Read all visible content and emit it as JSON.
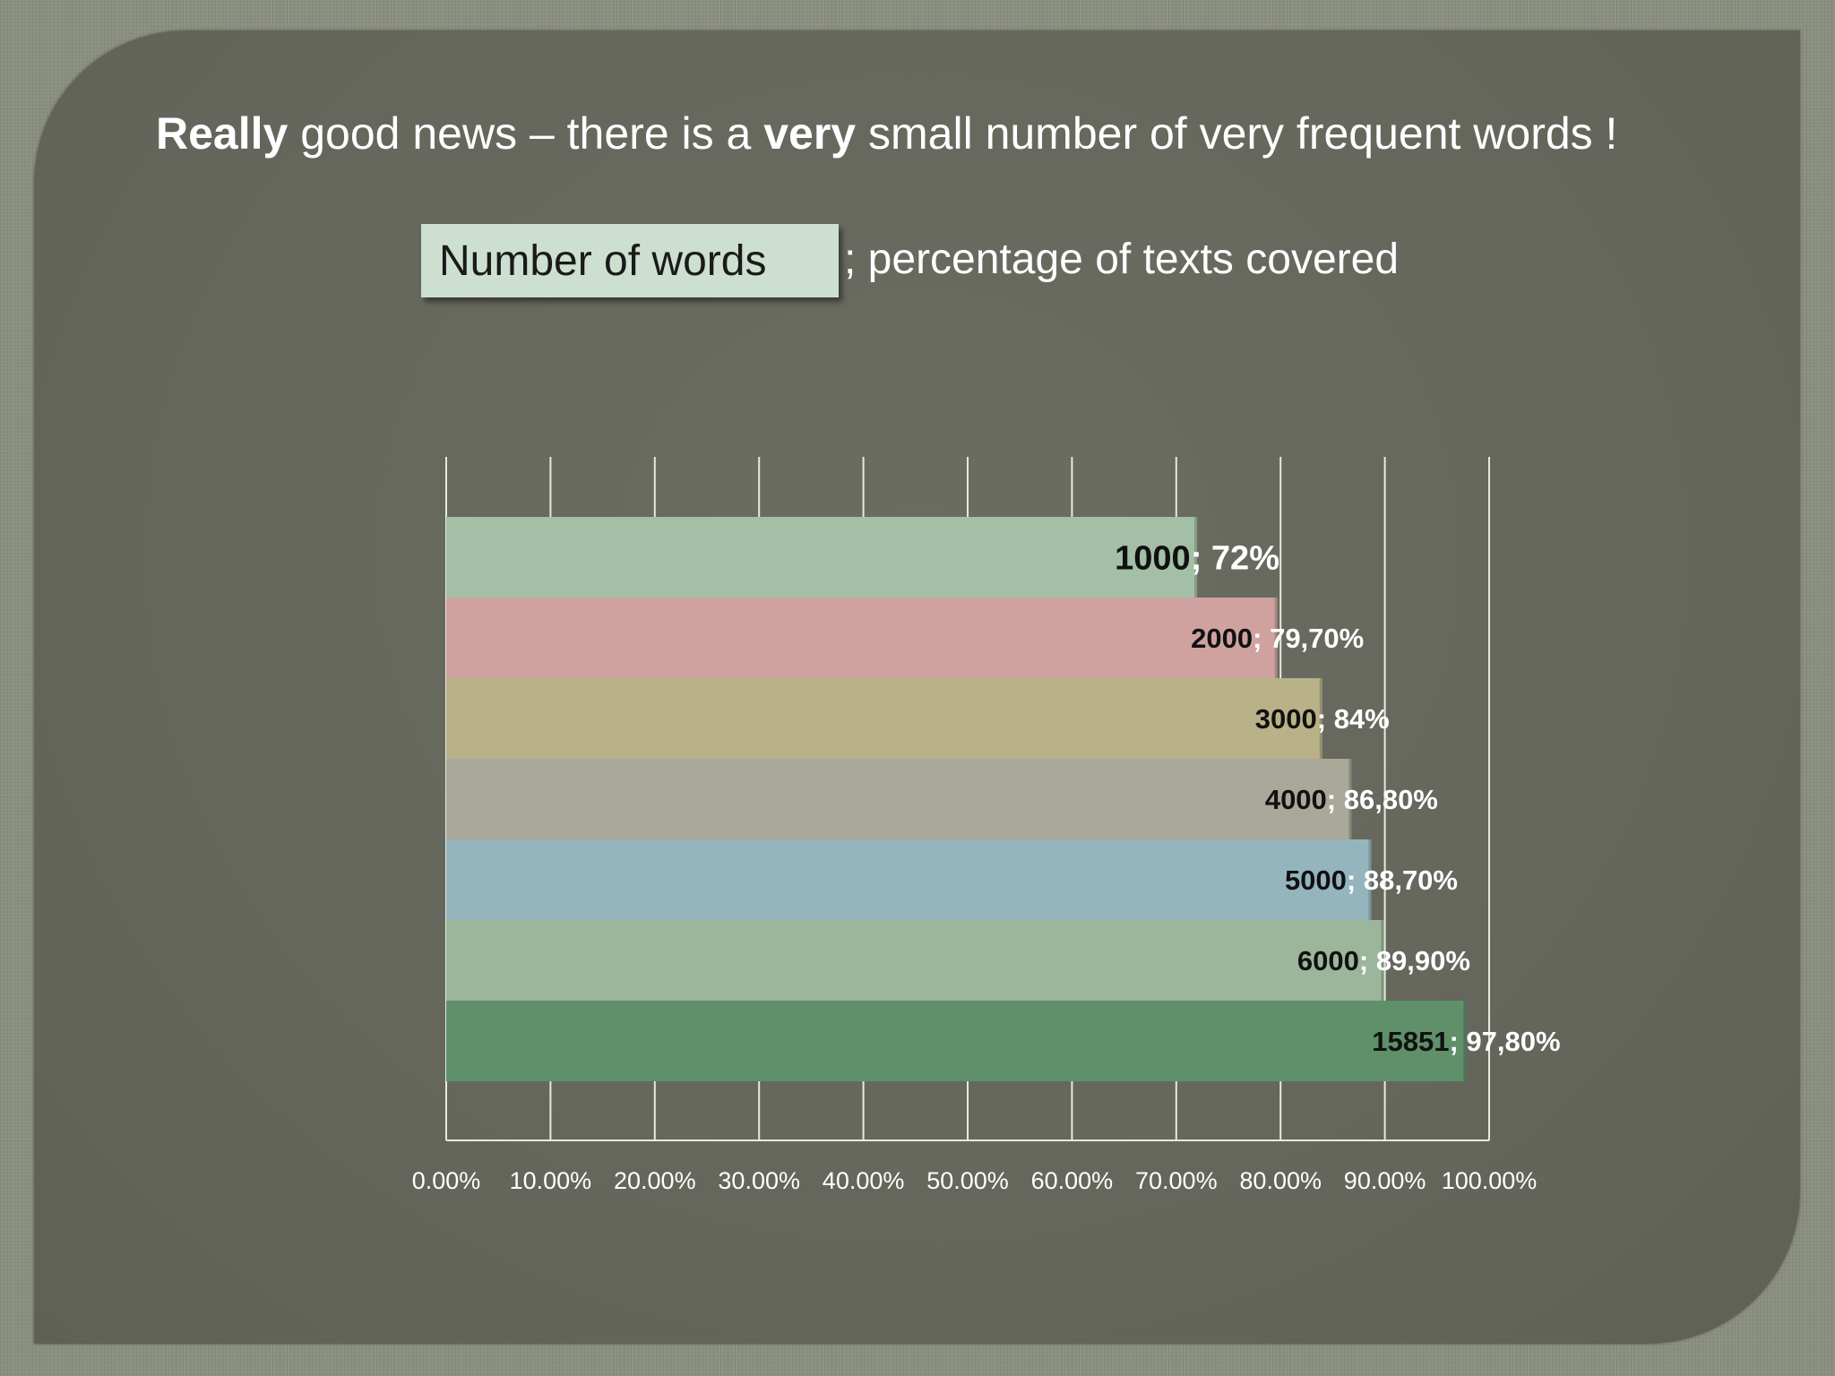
{
  "headline": {
    "part1_bold": "Really",
    "part2": " good news – there is a ",
    "part3_bold": "very",
    "part4": " small number of very frequent words !"
  },
  "legend": {
    "box_label": "Number of words",
    "rest_label": "; percentage of texts covered"
  },
  "chart_data": {
    "type": "bar",
    "orientation": "horizontal",
    "xlim": [
      0,
      100
    ],
    "x_ticks": [
      "0.00%",
      "10.00%",
      "20.00%",
      "30.00%",
      "40.00%",
      "50.00%",
      "60.00%",
      "70.00%",
      "80.00%",
      "90.00%",
      "100.00%"
    ],
    "bars": [
      {
        "words": "1000",
        "percent_text": "72%",
        "value": 72,
        "color": "#a3bfa5"
      },
      {
        "words": "2000",
        "percent_text": "79,70%",
        "value": 79.7,
        "color": "#cfa2a0"
      },
      {
        "words": "3000",
        "percent_text": "84%",
        "value": 84,
        "color": "#b9b187"
      },
      {
        "words": "4000",
        "percent_text": "86,80%",
        "value": 86.8,
        "color": "#a9a899"
      },
      {
        "words": "5000",
        "percent_text": "88,70%",
        "value": 88.7,
        "color": "#94b5bd"
      },
      {
        "words": "6000",
        "percent_text": "89,90%",
        "value": 89.9,
        "color": "#9bb69a"
      },
      {
        "words": "15851",
        "percent_text": "97,80%",
        "value": 97.8,
        "color": "#5f906a"
      }
    ],
    "gridlines": true
  }
}
